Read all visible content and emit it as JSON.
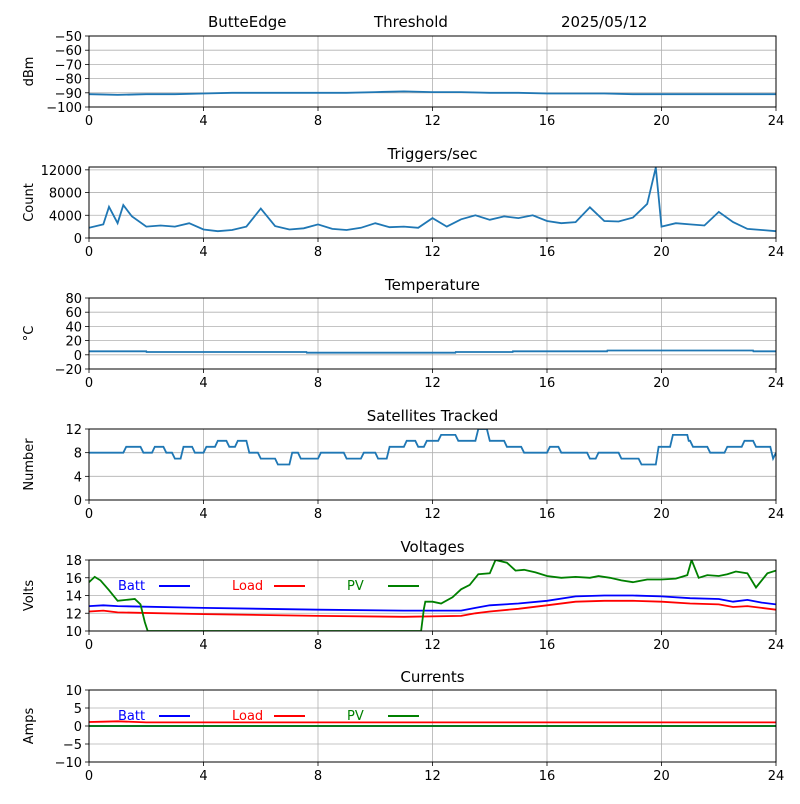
{
  "header": {
    "station": "ButteEdge",
    "mode": "Threshold",
    "date": "2025/05/12"
  },
  "colors": {
    "series": "#1f77b4",
    "batt": "#0000ff",
    "load": "#ff0000",
    "pv": "#008000",
    "grid": "#b0b0b0"
  },
  "chart_data": [
    {
      "type": "line",
      "title": "",
      "ylabel": "dBm",
      "ylim": [
        -100,
        -50
      ],
      "yticks": [
        -50,
        -60,
        -70,
        -80,
        -90,
        -100
      ],
      "xlim": [
        0,
        24
      ],
      "xticks": [
        0,
        4,
        8,
        12,
        16,
        20,
        24
      ],
      "grid": true,
      "series": [
        {
          "x": [
            0,
            1,
            2,
            3,
            4,
            5,
            6,
            7,
            8,
            9,
            10,
            11,
            12,
            13,
            14,
            15,
            16,
            17,
            18,
            19,
            20,
            21,
            22,
            23,
            24
          ],
          "y": [
            -91,
            -91.5,
            -91,
            -91,
            -90.5,
            -90,
            -90,
            -90,
            -90,
            -90,
            -89.5,
            -89,
            -89.5,
            -89.5,
            -90,
            -90,
            -90.5,
            -90.5,
            -90.5,
            -91,
            -91,
            -91,
            -91,
            -91,
            -91
          ]
        }
      ]
    },
    {
      "type": "line",
      "title": "Triggers/sec",
      "ylabel": "Count",
      "ylim": [
        0,
        12500
      ],
      "yticks": [
        0,
        4000,
        8000,
        12000
      ],
      "xlim": [
        0,
        24
      ],
      "xticks": [
        0,
        4,
        8,
        12,
        16,
        20,
        24
      ],
      "grid": true,
      "series": [
        {
          "x": [
            0,
            0.5,
            0.7,
            1,
            1.2,
            1.5,
            2,
            2.5,
            3,
            3.5,
            4,
            4.5,
            5,
            5.5,
            6,
            6.5,
            7,
            7.5,
            8,
            8.5,
            9,
            9.5,
            10,
            10.5,
            11,
            11.5,
            12,
            12.5,
            13,
            13.5,
            14,
            14.5,
            15,
            15.5,
            16,
            16.5,
            17,
            17.5,
            18,
            18.5,
            19,
            19.5,
            19.8,
            20,
            20.5,
            21,
            21.5,
            22,
            22.5,
            23,
            23.5,
            24
          ],
          "y": [
            1800,
            2400,
            5500,
            2600,
            5800,
            3800,
            2000,
            2200,
            2000,
            2600,
            1500,
            1200,
            1400,
            2000,
            5200,
            2100,
            1500,
            1700,
            2400,
            1600,
            1400,
            1800,
            2600,
            1900,
            2000,
            1800,
            3500,
            2000,
            3300,
            4000,
            3200,
            3800,
            3500,
            4000,
            3000,
            2600,
            2800,
            5400,
            3000,
            2900,
            3600,
            6000,
            12400,
            2000,
            2600,
            2400,
            2200,
            4600,
            2800,
            1600,
            1400,
            1200
          ]
        }
      ]
    },
    {
      "type": "line",
      "title": "Temperature",
      "ylabel": "°C",
      "ylim": [
        -20,
        80
      ],
      "yticks": [
        -20,
        0,
        20,
        40,
        60,
        80
      ],
      "xlim": [
        0,
        24
      ],
      "xticks": [
        0,
        4,
        8,
        12,
        16,
        20,
        24
      ],
      "grid": true,
      "series": [
        {
          "x": [
            0,
            2,
            2.01,
            7.6,
            7.61,
            12.8,
            12.81,
            14.8,
            14.81,
            18.1,
            18.11,
            23.2,
            23.21,
            24
          ],
          "y": [
            5,
            5,
            4,
            4,
            3,
            3,
            4,
            4,
            5,
            5,
            6,
            6,
            5,
            5
          ]
        }
      ]
    },
    {
      "type": "line",
      "title": "Satellites Tracked",
      "ylabel": "Number",
      "ylim": [
        0,
        12
      ],
      "yticks": [
        0,
        4,
        8,
        12
      ],
      "xlim": [
        0,
        24
      ],
      "xticks": [
        0,
        4,
        8,
        12,
        16,
        20,
        24
      ],
      "grid": true,
      "series": [
        {
          "x": [
            0,
            1.2,
            1.3,
            1.8,
            1.9,
            2.2,
            2.3,
            2.6,
            2.7,
            2.9,
            3.0,
            3.2,
            3.3,
            3.6,
            3.7,
            4.0,
            4.1,
            4.4,
            4.5,
            4.8,
            4.9,
            5.1,
            5.2,
            5.5,
            5.6,
            5.9,
            6.0,
            6.5,
            6.6,
            7.0,
            7.1,
            7.3,
            7.4,
            8.0,
            8.1,
            8.9,
            9.0,
            9.5,
            9.6,
            10.0,
            10.1,
            10.4,
            10.5,
            11.0,
            11.1,
            11.4,
            11.5,
            11.7,
            11.8,
            12.2,
            12.3,
            12.8,
            12.9,
            13.5,
            13.6,
            13.9,
            14.0,
            14.5,
            14.6,
            15.1,
            15.2,
            16.0,
            16.1,
            16.4,
            16.5,
            17.4,
            17.5,
            17.7,
            17.8,
            18.5,
            18.6,
            19.2,
            19.3,
            19.8,
            19.9,
            20.3,
            20.4,
            20.9,
            20.95,
            21.0,
            21.1,
            21.6,
            21.7,
            22.2,
            22.3,
            22.8,
            22.9,
            23.2,
            23.3,
            23.8,
            23.9,
            24
          ],
          "y": [
            8,
            8,
            9,
            9,
            8,
            8,
            9,
            9,
            8,
            8,
            7,
            7,
            9,
            9,
            8,
            8,
            9,
            9,
            10,
            10,
            9,
            9,
            10,
            10,
            8,
            8,
            7,
            7,
            6,
            6,
            8,
            8,
            7,
            7,
            8,
            8,
            7,
            7,
            8,
            8,
            7,
            7,
            9,
            9,
            10,
            10,
            9,
            9,
            10,
            10,
            11,
            11,
            10,
            10,
            12,
            12,
            10,
            10,
            9,
            9,
            8,
            8,
            9,
            9,
            8,
            8,
            7,
            7,
            8,
            8,
            7,
            7,
            6,
            6,
            9,
            9,
            11,
            11,
            10,
            10,
            9,
            9,
            8,
            8,
            9,
            9,
            10,
            10,
            9,
            9,
            7,
            8
          ]
        }
      ]
    },
    {
      "type": "line",
      "title": "Voltages",
      "ylabel": "Volts",
      "ylim": [
        10,
        18
      ],
      "yticks": [
        10,
        12,
        14,
        16,
        18
      ],
      "xlim": [
        0,
        24
      ],
      "xticks": [
        0,
        4,
        8,
        12,
        16,
        20,
        24
      ],
      "grid": true,
      "series": [
        {
          "name": "Batt",
          "color": "#0000ff",
          "x": [
            0,
            0.5,
            1,
            4,
            8,
            11,
            13,
            13.5,
            14,
            15,
            16,
            17,
            18,
            19,
            20,
            21,
            22,
            22.5,
            23,
            23.5,
            24
          ],
          "y": [
            12.8,
            12.9,
            12.8,
            12.6,
            12.4,
            12.3,
            12.3,
            12.6,
            12.9,
            13.1,
            13.4,
            13.9,
            14.0,
            14.0,
            13.9,
            13.7,
            13.6,
            13.3,
            13.5,
            13.2,
            13.0
          ]
        },
        {
          "name": "Load",
          "color": "#ff0000",
          "x": [
            0,
            0.5,
            1,
            4,
            8,
            11,
            13,
            13.5,
            14,
            15,
            16,
            17,
            18,
            19,
            20,
            21,
            22,
            22.5,
            23,
            23.5,
            24
          ],
          "y": [
            12.2,
            12.3,
            12.1,
            11.9,
            11.7,
            11.6,
            11.7,
            12.0,
            12.2,
            12.5,
            12.9,
            13.3,
            13.4,
            13.4,
            13.3,
            13.1,
            13.0,
            12.7,
            12.8,
            12.6,
            12.4
          ]
        },
        {
          "name": "PV",
          "color": "#008000",
          "x": [
            0,
            0.2,
            0.4,
            0.7,
            1.0,
            1.3,
            1.6,
            1.8,
            1.95,
            2.05,
            11.6,
            11.7,
            11.75,
            12.0,
            12.3,
            12.7,
            13.0,
            13.3,
            13.6,
            14.0,
            14.2,
            14.6,
            14.9,
            15.2,
            15.6,
            16.0,
            16.5,
            17.0,
            17.5,
            17.8,
            18.2,
            18.6,
            19.0,
            19.5,
            20.0,
            20.5,
            20.9,
            21.05,
            21.3,
            21.6,
            22.0,
            22.3,
            22.6,
            23.0,
            23.3,
            23.7,
            24
          ],
          "y": [
            15.5,
            16.1,
            15.7,
            14.6,
            13.4,
            13.5,
            13.6,
            13.0,
            11.0,
            10.0,
            10.0,
            12.5,
            13.3,
            13.3,
            13.1,
            13.8,
            14.7,
            15.2,
            16.4,
            16.5,
            18.0,
            17.7,
            16.8,
            16.9,
            16.6,
            16.2,
            16.0,
            16.1,
            16.0,
            16.2,
            16.0,
            15.7,
            15.5,
            15.8,
            15.8,
            15.9,
            16.3,
            18.0,
            16.0,
            16.3,
            16.2,
            16.4,
            16.7,
            16.5,
            14.9,
            16.5,
            16.8
          ]
        }
      ]
    },
    {
      "type": "line",
      "title": "Currents",
      "ylabel": "Amps",
      "ylim": [
        -10,
        10
      ],
      "yticks": [
        -10,
        -5,
        0,
        5,
        10
      ],
      "xlim": [
        0,
        24
      ],
      "xticks": [
        0,
        4,
        8,
        12,
        16,
        20,
        24
      ],
      "grid": true,
      "series": [
        {
          "name": "Batt",
          "color": "#0000ff",
          "x": [
            0,
            24
          ],
          "y": [
            0,
            0
          ]
        },
        {
          "name": "Load",
          "color": "#ff0000",
          "x": [
            0,
            0.5,
            1,
            2,
            24
          ],
          "y": [
            1.1,
            1.2,
            1.3,
            1.0,
            1.0
          ]
        },
        {
          "name": "PV",
          "color": "#008000",
          "x": [
            0,
            24
          ],
          "y": [
            0,
            0
          ]
        }
      ]
    }
  ]
}
